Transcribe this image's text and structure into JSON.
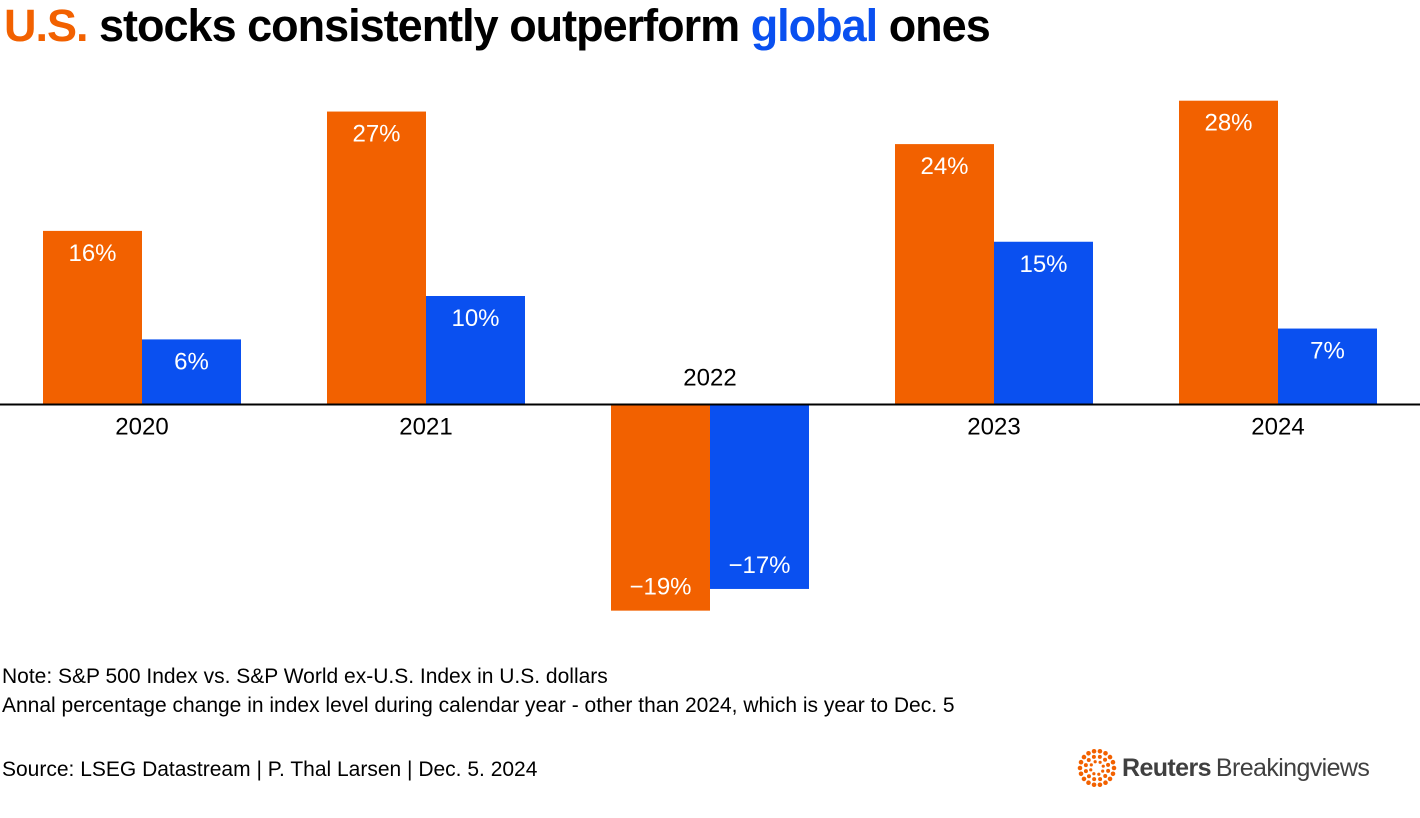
{
  "title": {
    "part1": "U.S.",
    "part2": " stocks consistently outperform ",
    "part3": "global",
    "part4": " ones"
  },
  "colors": {
    "us": "#f26100",
    "global": "#0a50f0",
    "label_on_bar": "#ffffff",
    "axis": "#000000"
  },
  "chart_data": {
    "type": "bar",
    "categories": [
      "2020",
      "2021",
      "2022",
      "2023",
      "2024"
    ],
    "series": [
      {
        "name": "S&P 500 Index",
        "color": "#f26100",
        "values": [
          16,
          27,
          -19,
          24,
          28
        ],
        "labels": [
          "16%",
          "27%",
          "−19%",
          "24%",
          "28%"
        ]
      },
      {
        "name": "S&P World ex-U.S. Index",
        "color": "#0a50f0",
        "values": [
          6,
          10,
          -17,
          15,
          7
        ],
        "labels": [
          "6%",
          "10%",
          "−17%",
          "15%",
          "7%"
        ]
      }
    ],
    "ylim": [
      -20,
      29
    ],
    "unit": "%",
    "grid": false,
    "xlabel": "",
    "ylabel": ""
  },
  "notes": {
    "line1": "Note: S&P 500 Index vs. S&P World ex-U.S. Index in U.S. dollars",
    "line2": "Annal percentage change in index level during calendar year - other than 2024, which is year to Dec. 5"
  },
  "source": "Source: LSEG Datastream | P. Thal Larsen | Dec. 5. 2024",
  "logo": {
    "icon": "reuters-dots-icon",
    "bold": "Reuters",
    "regular": "Breakingviews"
  }
}
